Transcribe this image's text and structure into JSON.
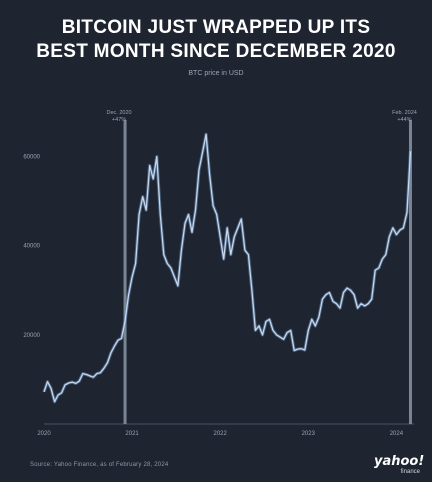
{
  "title_line1": "BITCOIN JUST WRAPPED UP ITS",
  "title_line2": "BEST MONTH SINCE DECEMBER 2020",
  "subtitle": "BTC price in USD",
  "source": "Source: Yahoo Finance, as of February 28, 2024",
  "logo": {
    "name": "yahoo!",
    "sub": "finance"
  },
  "colors": {
    "background": "#1e2430",
    "line": "#c3d7f0",
    "marker": "#8b96a6",
    "text": "#ffffff",
    "muted": "#9aa5b5"
  },
  "chart_data": {
    "type": "line",
    "title": "BITCOIN JUST WRAPPED UP ITS BEST MONTH SINCE DECEMBER 2020",
    "ylabel": "BTC price in USD",
    "xlim": [
      2020.0,
      2024.2
    ],
    "ylim": [
      0,
      70000
    ],
    "yticks": [
      20000,
      40000,
      60000
    ],
    "ytick_labels": [
      "20000",
      "40000",
      "60000"
    ],
    "xticks": [
      2020,
      2021,
      2022,
      2023,
      2024
    ],
    "xtick_labels": [
      "2020",
      "2021",
      "2022",
      "2023",
      "2024"
    ],
    "grid": false,
    "legend": "none",
    "annotations": [
      {
        "x": 2020.92,
        "label": "Dec. 2020",
        "sublabel": "+47%"
      },
      {
        "x": 2024.16,
        "label": "Feb. 2024",
        "sublabel": "+44%"
      }
    ],
    "series": [
      {
        "x": [
          2020.0,
          2020.04,
          2020.08,
          2020.12,
          2020.16,
          2020.2,
          2020.24,
          2020.28,
          2020.32,
          2020.36,
          2020.4,
          2020.44,
          2020.48,
          2020.52,
          2020.56,
          2020.6,
          2020.64,
          2020.68,
          2020.72,
          2020.76,
          2020.8,
          2020.84,
          2020.88,
          2020.92,
          2020.96,
          2021.0,
          2021.04,
          2021.08,
          2021.12,
          2021.16,
          2021.2,
          2021.24,
          2021.28,
          2021.32,
          2021.36,
          2021.4,
          2021.44,
          2021.48,
          2021.52,
          2021.56,
          2021.6,
          2021.64,
          2021.68,
          2021.72,
          2021.76,
          2021.8,
          2021.84,
          2021.88,
          2021.92,
          2021.96,
          2022.0,
          2022.04,
          2022.08,
          2022.12,
          2022.16,
          2022.2,
          2022.24,
          2022.28,
          2022.32,
          2022.36,
          2022.4,
          2022.44,
          2022.48,
          2022.52,
          2022.56,
          2022.6,
          2022.64,
          2022.68,
          2022.72,
          2022.76,
          2022.8,
          2022.84,
          2022.88,
          2022.92,
          2022.96,
          2023.0,
          2023.04,
          2023.08,
          2023.12,
          2023.16,
          2023.2,
          2023.24,
          2023.28,
          2023.32,
          2023.36,
          2023.4,
          2023.44,
          2023.48,
          2023.52,
          2023.56,
          2023.6,
          2023.64,
          2023.68,
          2023.72,
          2023.76,
          2023.8,
          2023.84,
          2023.88,
          2023.92,
          2023.96,
          2024.0,
          2024.04,
          2024.08,
          2024.12,
          2024.16
        ],
        "y": [
          7200,
          9500,
          8000,
          5000,
          6500,
          7000,
          8800,
          9200,
          9400,
          9100,
          9600,
          11300,
          11100,
          10800,
          10500,
          11300,
          11500,
          12500,
          13700,
          16000,
          17500,
          18800,
          19200,
          23000,
          29000,
          33000,
          36000,
          47000,
          51000,
          48000,
          58000,
          55000,
          60000,
          47000,
          38000,
          36000,
          35000,
          33000,
          31000,
          39000,
          45000,
          47000,
          43000,
          48000,
          57000,
          61000,
          65000,
          56000,
          49000,
          47000,
          42000,
          37000,
          44000,
          38000,
          42000,
          44000,
          46000,
          39000,
          38000,
          30000,
          21000,
          22000,
          20000,
          23000,
          23500,
          21000,
          20000,
          19500,
          19000,
          20500,
          21000,
          16500,
          16800,
          16900,
          16600,
          21000,
          23500,
          22000,
          24000,
          28000,
          29000,
          29500,
          27500,
          27000,
          26000,
          29500,
          30500,
          30000,
          29000,
          26000,
          27000,
          26500,
          27000,
          28000,
          34500,
          35000,
          37000,
          38000,
          42000,
          44000,
          42500,
          43500,
          44000,
          47500,
          61200
        ]
      }
    ]
  }
}
